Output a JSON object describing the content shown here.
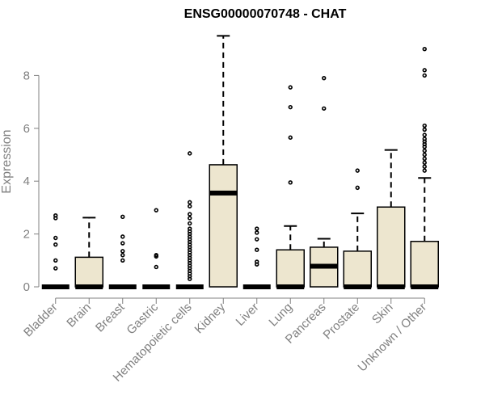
{
  "chart_data": {
    "type": "box",
    "title": "ENSG00000070748 - CHAT",
    "xlabel": "",
    "ylabel": "Expression",
    "ylim": [
      0,
      9.6
    ],
    "yticks": [
      0,
      2,
      4,
      6,
      8
    ],
    "grid": false,
    "colors": {
      "box_fill": "#ede6cf",
      "box_stroke": "#000000",
      "axis": "#808080"
    },
    "categories": [
      "Bladder",
      "Brain",
      "Breast",
      "Gastric",
      "Hematopoietic cells",
      "Kidney",
      "Liver",
      "Lung",
      "Pancreas",
      "Prostate",
      "Skin",
      "Unknown / Other"
    ],
    "boxes": [
      {
        "category": "Bladder",
        "q1": 0,
        "median": 0,
        "q3": 0,
        "whisker_low": 0,
        "whisker_high": 0,
        "outliers": [
          2.7,
          2.6,
          1.85,
          1.6,
          1.0,
          0.7
        ]
      },
      {
        "category": "Brain",
        "q1": 0,
        "median": 0,
        "q3": 1.12,
        "whisker_low": 0,
        "whisker_high": 2.62,
        "outliers": []
      },
      {
        "category": "Breast",
        "q1": 0,
        "median": 0,
        "q3": 0,
        "whisker_low": 0,
        "whisker_high": 0,
        "outliers": [
          2.65,
          1.9,
          1.65,
          1.35,
          1.2,
          1.0
        ]
      },
      {
        "category": "Gastric",
        "q1": 0,
        "median": 0,
        "q3": 0,
        "whisker_low": 0,
        "whisker_high": 0,
        "outliers": [
          2.9,
          1.2,
          1.15,
          0.75
        ]
      },
      {
        "category": "Hematopoietic cells",
        "q1": 0,
        "median": 0,
        "q3": 0,
        "whisker_low": 0,
        "whisker_high": 0,
        "outliers": [
          5.05,
          3.2,
          3.05,
          2.75,
          2.6,
          2.4,
          2.2,
          2.1,
          2.0,
          1.9,
          1.8,
          1.7,
          1.6,
          1.5,
          1.4,
          1.3,
          1.2,
          1.1,
          1.0,
          0.9,
          0.8,
          0.7,
          0.6,
          0.5,
          0.4,
          0.3
        ]
      },
      {
        "category": "Kidney",
        "q1": 0,
        "median": 3.55,
        "q3": 4.62,
        "whisker_low": 0,
        "whisker_high": 9.5,
        "outliers": []
      },
      {
        "category": "Liver",
        "q1": 0,
        "median": 0,
        "q3": 0,
        "whisker_low": 0,
        "whisker_high": 0,
        "outliers": [
          2.2,
          2.05,
          1.8,
          1.4,
          0.95,
          0.85
        ]
      },
      {
        "category": "Lung",
        "q1": 0,
        "median": 0,
        "q3": 1.4,
        "whisker_low": 0,
        "whisker_high": 2.3,
        "outliers": [
          7.55,
          6.8,
          5.65,
          3.95
        ]
      },
      {
        "category": "Pancreas",
        "q1": 0,
        "median": 0.78,
        "q3": 1.5,
        "whisker_low": 0,
        "whisker_high": 1.82,
        "outliers": [
          7.9,
          6.75
        ]
      },
      {
        "category": "Prostate",
        "q1": 0,
        "median": 0,
        "q3": 1.35,
        "whisker_low": 0,
        "whisker_high": 2.78,
        "outliers": [
          4.4,
          3.75
        ]
      },
      {
        "category": "Skin",
        "q1": 0,
        "median": 0,
        "q3": 3.02,
        "whisker_low": 0,
        "whisker_high": 5.18,
        "outliers": []
      },
      {
        "category": "Unknown / Other",
        "q1": 0,
        "median": 0,
        "q3": 1.72,
        "whisker_low": 0,
        "whisker_high": 4.12,
        "outliers": [
          9.0,
          8.2,
          8.0,
          6.1,
          5.95,
          5.75,
          5.6,
          5.5,
          5.4,
          5.3,
          5.15,
          5.0,
          4.85,
          4.7,
          4.55,
          4.4
        ]
      }
    ]
  }
}
